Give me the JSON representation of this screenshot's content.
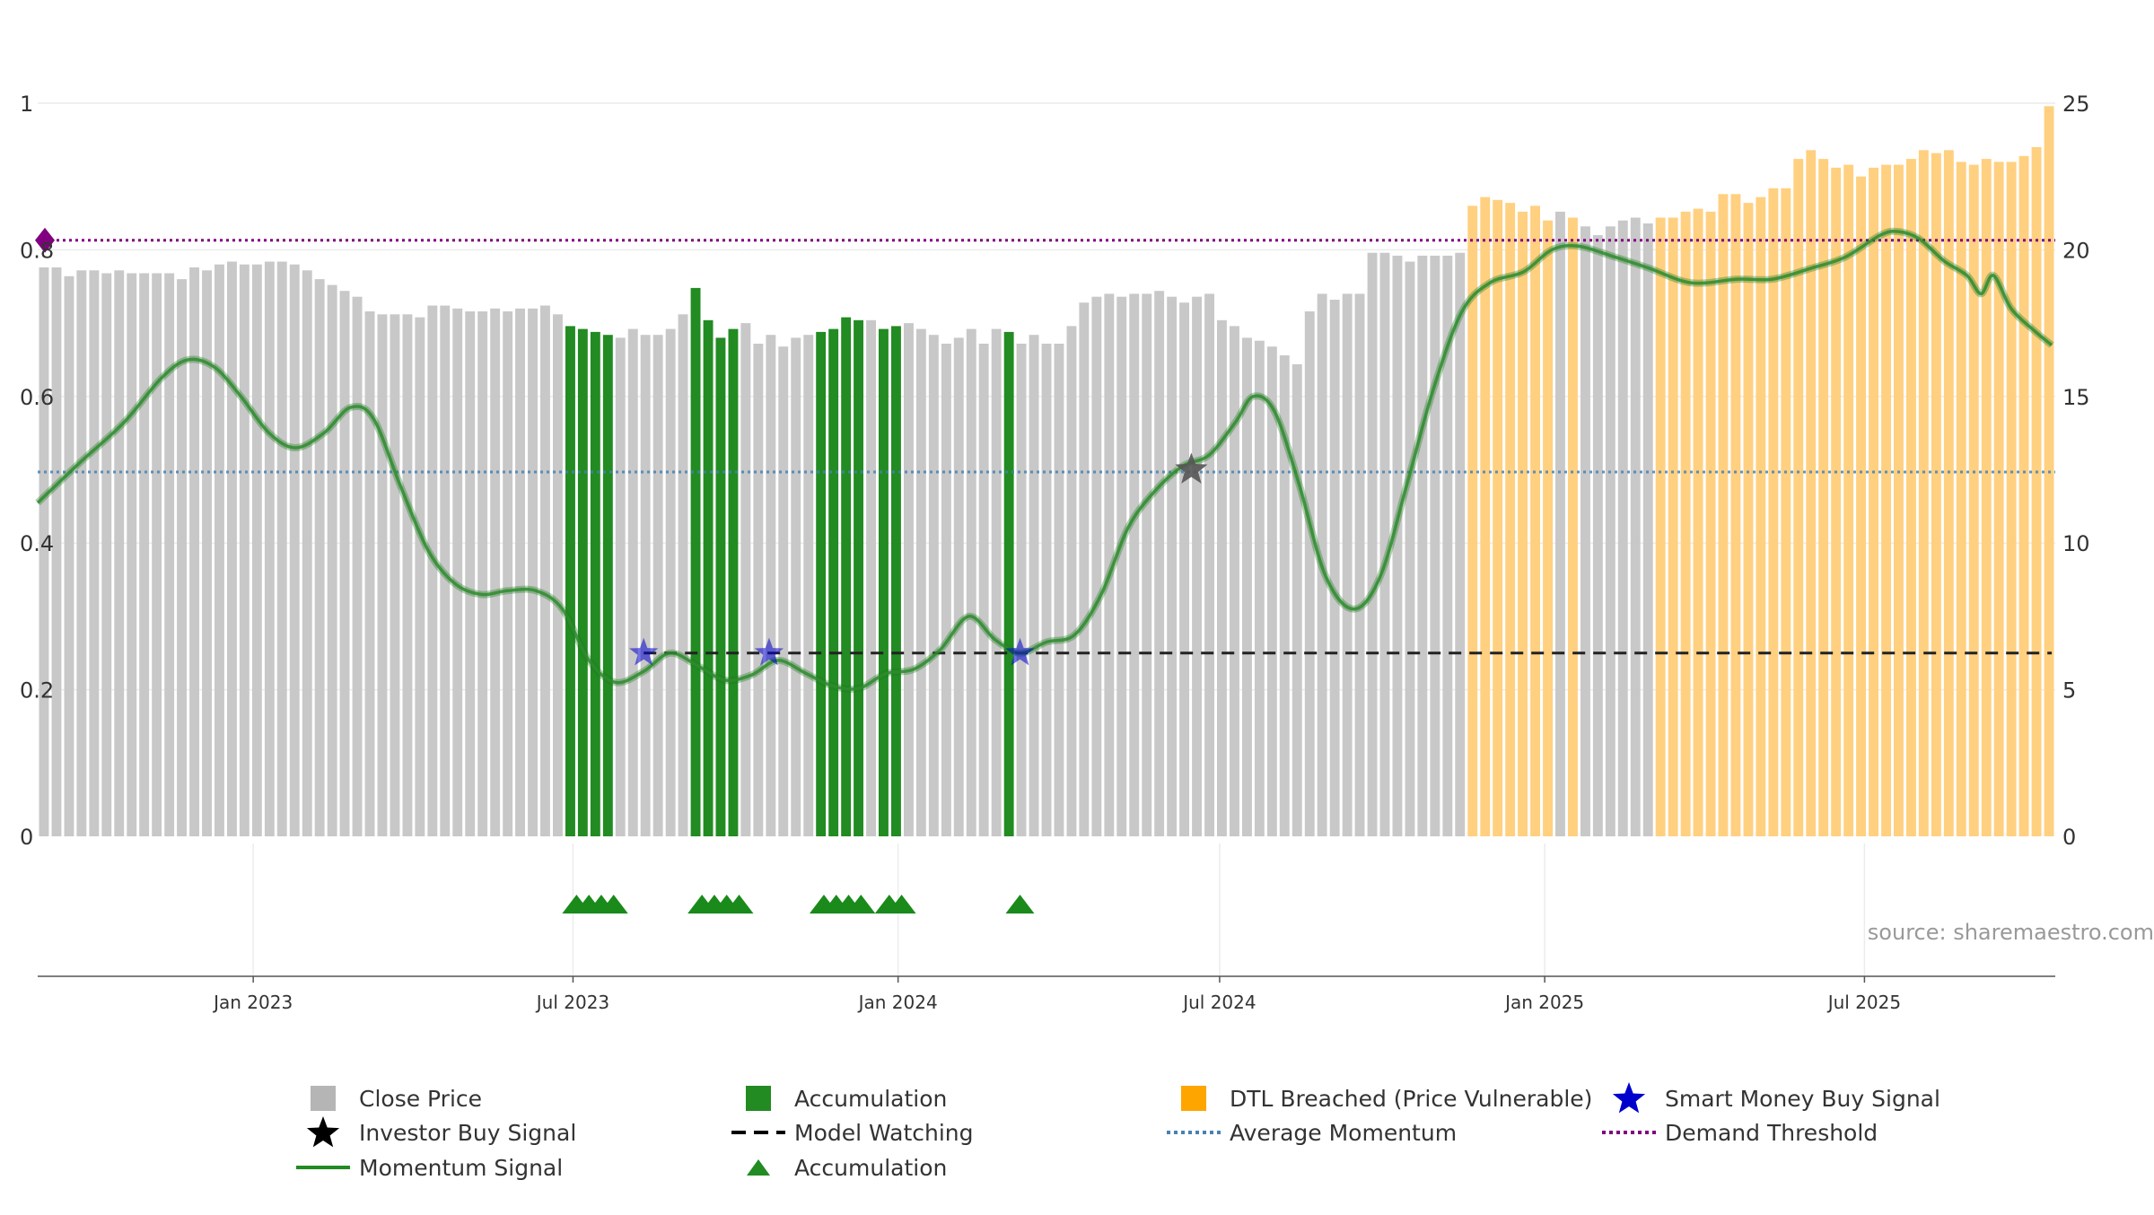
{
  "chart_data": {
    "type": "bar",
    "source_text": "source: sharemaestro.com",
    "left_axis": {
      "ticks": [
        0,
        0.2,
        0.4,
        0.6,
        0.8,
        1
      ],
      "tick_labels": [
        "0",
        "0.2",
        "0.4",
        "0.6",
        "0.8",
        "1"
      ],
      "range": [
        0,
        1
      ]
    },
    "right_axis": {
      "ticks": [
        0,
        5,
        10,
        15,
        20,
        25
      ],
      "tick_labels": [
        "0",
        "5",
        "10",
        "15",
        "20",
        "25"
      ],
      "range": [
        0,
        25
      ]
    },
    "x_axis": {
      "start": "2022-09-01",
      "end": "2025-10-17",
      "ticks": [
        {
          "date": "2023-01-01",
          "label": "Jan 2023"
        },
        {
          "date": "2023-07-01",
          "label": "Jul 2023"
        },
        {
          "date": "2024-01-01",
          "label": "Jan 2024"
        },
        {
          "date": "2024-07-01",
          "label": "Jul 2024"
        },
        {
          "date": "2025-01-01",
          "label": "Jan 2025"
        },
        {
          "date": "2025-07-01",
          "label": "Jul 2025"
        }
      ]
    },
    "colors": {
      "close": "#c8c8c8",
      "accumulation": "#228b22",
      "dtl": "#ffd080",
      "momentum": "#2e8b2e",
      "demand": "#800080",
      "average": "#4682b4",
      "watching": "#222222",
      "smart_money": "#0000cd",
      "investor": "#555555"
    },
    "bars": {
      "start": "2022-09-01",
      "interval_days": 6.4,
      "close_values": [
        19.4,
        19.4,
        19.1,
        19.3,
        19.3,
        19.2,
        19.3,
        19.2,
        19.2,
        19.2,
        19.2,
        19.0,
        19.4,
        19.3,
        19.5,
        19.6,
        19.5,
        19.5,
        19.6,
        19.6,
        19.5,
        19.3,
        19.0,
        18.8,
        18.6,
        18.4,
        17.9,
        17.8,
        17.8,
        17.8,
        17.7,
        18.1,
        18.1,
        18.0,
        17.9,
        17.9,
        18.0,
        17.9,
        18.0,
        18.0,
        18.1,
        17.8,
        17.4,
        17.3,
        17.2,
        17.1,
        17.0,
        17.3,
        17.1,
        17.1,
        17.3,
        17.8,
        18.7,
        17.6,
        17.0,
        17.3,
        17.5,
        16.8,
        17.1,
        16.7,
        17.0,
        17.1,
        17.2,
        17.3,
        17.7,
        17.6,
        17.6,
        17.3,
        17.4,
        17.5,
        17.3,
        17.1,
        16.8,
        17.0,
        17.3,
        16.8,
        17.3,
        17.2,
        16.8,
        17.1,
        16.8,
        16.8,
        17.4,
        18.2,
        18.4,
        18.5,
        18.4,
        18.5,
        18.5,
        18.6,
        18.4,
        18.2,
        18.4,
        18.5,
        17.6,
        17.4,
        17.0,
        16.9,
        16.7,
        16.4,
        16.1,
        17.9,
        18.5,
        18.3,
        18.5,
        18.5,
        19.9,
        19.9,
        19.8,
        19.6,
        19.8,
        19.8,
        19.8,
        19.9,
        21.5,
        21.8,
        21.7,
        21.6,
        21.3,
        21.5,
        21.0,
        21.3,
        21.1,
        20.8,
        20.5,
        20.8,
        21.0,
        21.1,
        20.9,
        21.1,
        21.1,
        21.3,
        21.4,
        21.3,
        21.9,
        21.9,
        21.6,
        21.8,
        22.1,
        22.1,
        23.1,
        23.4,
        23.1,
        22.8,
        22.9,
        22.5,
        22.8,
        22.9,
        22.9,
        23.1,
        23.4,
        23.3,
        23.4,
        23.0,
        22.9,
        23.1,
        23.0,
        23.0,
        23.2,
        23.5,
        24.9
      ],
      "categories": [
        "c",
        "c",
        "c",
        "c",
        "c",
        "c",
        "c",
        "c",
        "c",
        "c",
        "c",
        "c",
        "c",
        "c",
        "c",
        "c",
        "c",
        "c",
        "c",
        "c",
        "c",
        "c",
        "c",
        "c",
        "c",
        "c",
        "c",
        "c",
        "c",
        "c",
        "c",
        "c",
        "c",
        "c",
        "c",
        "c",
        "c",
        "c",
        "c",
        "c",
        "c",
        "c",
        "a",
        "a",
        "a",
        "a",
        "c",
        "c",
        "c",
        "c",
        "c",
        "c",
        "a",
        "a",
        "a",
        "a",
        "c",
        "c",
        "c",
        "c",
        "c",
        "c",
        "a",
        "a",
        "a",
        "a",
        "c",
        "a",
        "a",
        "c",
        "c",
        "c",
        "c",
        "c",
        "c",
        "c",
        "c",
        "a",
        "c",
        "c",
        "c",
        "c",
        "c",
        "c",
        "c",
        "c",
        "c",
        "c",
        "c",
        "c",
        "c",
        "c",
        "c",
        "c",
        "c",
        "c",
        "c",
        "c",
        "c",
        "c",
        "c",
        "c",
        "c",
        "c",
        "c",
        "c",
        "c",
        "c",
        "c",
        "c",
        "c",
        "c",
        "c",
        "c",
        "d",
        "d",
        "d",
        "d",
        "d",
        "d",
        "d",
        "c",
        "d",
        "c",
        "c",
        "c",
        "c",
        "c",
        "c",
        "d",
        "d",
        "d",
        "d",
        "d",
        "d",
        "d",
        "d",
        "d",
        "d",
        "d",
        "d",
        "d",
        "d",
        "d",
        "d",
        "d",
        "d",
        "d",
        "d",
        "d",
        "d",
        "d",
        "d",
        "d",
        "d",
        "d",
        "d",
        "d",
        "d",
        "d",
        "d",
        "d",
        "d",
        "d",
        "d"
      ]
    },
    "momentum_signal": [
      [
        "2022-09-01",
        0.455
      ],
      [
        "2022-09-25",
        0.51
      ],
      [
        "2022-10-20",
        0.565
      ],
      [
        "2022-11-10",
        0.625
      ],
      [
        "2022-11-25",
        0.65
      ],
      [
        "2022-12-10",
        0.64
      ],
      [
        "2022-12-25",
        0.6
      ],
      [
        "2023-01-10",
        0.55
      ],
      [
        "2023-01-25",
        0.53
      ],
      [
        "2023-02-10",
        0.55
      ],
      [
        "2023-02-25",
        0.585
      ],
      [
        "2023-03-10",
        0.57
      ],
      [
        "2023-03-25",
        0.48
      ],
      [
        "2023-04-10",
        0.39
      ],
      [
        "2023-04-25",
        0.345
      ],
      [
        "2023-05-10",
        0.33
      ],
      [
        "2023-05-25",
        0.335
      ],
      [
        "2023-06-10",
        0.335
      ],
      [
        "2023-06-25",
        0.31
      ],
      [
        "2023-07-10",
        0.24
      ],
      [
        "2023-07-25",
        0.21
      ],
      [
        "2023-08-10",
        0.225
      ],
      [
        "2023-08-25",
        0.25
      ],
      [
        "2023-09-10",
        0.232
      ],
      [
        "2023-09-25",
        0.213
      ],
      [
        "2023-10-10",
        0.22
      ],
      [
        "2023-10-25",
        0.24
      ],
      [
        "2023-11-10",
        0.222
      ],
      [
        "2023-11-25",
        0.205
      ],
      [
        "2023-12-10",
        0.202
      ],
      [
        "2023-12-25",
        0.222
      ],
      [
        "2024-01-10",
        0.228
      ],
      [
        "2024-01-25",
        0.255
      ],
      [
        "2024-02-10",
        0.3
      ],
      [
        "2024-02-25",
        0.268
      ],
      [
        "2024-03-10",
        0.25
      ],
      [
        "2024-03-25",
        0.265
      ],
      [
        "2024-04-10",
        0.275
      ],
      [
        "2024-04-25",
        0.33
      ],
      [
        "2024-05-10",
        0.42
      ],
      [
        "2024-05-25",
        0.47
      ],
      [
        "2024-06-10",
        0.505
      ],
      [
        "2024-06-25",
        0.52
      ],
      [
        "2024-07-10",
        0.565
      ],
      [
        "2024-07-20",
        0.6
      ],
      [
        "2024-08-01",
        0.58
      ],
      [
        "2024-08-15",
        0.48
      ],
      [
        "2024-08-30",
        0.355
      ],
      [
        "2024-09-15",
        0.31
      ],
      [
        "2024-09-30",
        0.355
      ],
      [
        "2024-10-15",
        0.48
      ],
      [
        "2024-10-30",
        0.61
      ],
      [
        "2024-11-15",
        0.715
      ],
      [
        "2024-12-01",
        0.755
      ],
      [
        "2024-12-20",
        0.77
      ],
      [
        "2025-01-05",
        0.8
      ],
      [
        "2025-01-20",
        0.805
      ],
      [
        "2025-02-10",
        0.79
      ],
      [
        "2025-03-01",
        0.775
      ],
      [
        "2025-03-25",
        0.755
      ],
      [
        "2025-04-20",
        0.76
      ],
      [
        "2025-05-10",
        0.76
      ],
      [
        "2025-06-01",
        0.775
      ],
      [
        "2025-06-20",
        0.79
      ],
      [
        "2025-07-10",
        0.82
      ],
      [
        "2025-07-20",
        0.825
      ],
      [
        "2025-08-01",
        0.815
      ],
      [
        "2025-08-15",
        0.785
      ],
      [
        "2025-08-28",
        0.765
      ],
      [
        "2025-09-05",
        0.74
      ],
      [
        "2025-09-12",
        0.765
      ],
      [
        "2025-09-22",
        0.72
      ],
      [
        "2025-10-05",
        0.69
      ],
      [
        "2025-10-15",
        0.67
      ]
    ],
    "demand_threshold": 0.813,
    "average_momentum": 0.497,
    "model_watching": {
      "value": 0.25,
      "start": "2023-08-10",
      "end": "2025-10-15"
    },
    "smart_money_buy_signals": [
      [
        "2023-08-10",
        0.25
      ],
      [
        "2023-10-20",
        0.25
      ],
      [
        "2024-03-10",
        0.25
      ]
    ],
    "investor_buy_signals": [
      [
        "2024-06-15",
        0.5
      ]
    ],
    "demand_marker": [
      "2022-09-01",
      0.813
    ],
    "accumulation_triangles": [
      "2023-07-03",
      "2023-07-10",
      "2023-07-17",
      "2023-07-24",
      "2023-09-12",
      "2023-09-19",
      "2023-09-26",
      "2023-10-03",
      "2023-11-20",
      "2023-11-27",
      "2023-12-04",
      "2023-12-11",
      "2023-12-27",
      "2024-01-03",
      "2024-03-10"
    ],
    "legend": [
      {
        "label": "Close Price",
        "symbol": "square",
        "color": "#b5b5b5"
      },
      {
        "label": "Accumulation",
        "symbol": "square",
        "color": "#228b22"
      },
      {
        "label": "DTL Breached (Price Vulnerable)",
        "symbol": "square",
        "color": "#ffa500"
      },
      {
        "label": "Smart Money Buy Signal",
        "symbol": "star",
        "color": "#0000cd"
      },
      {
        "label": "Investor Buy Signal",
        "symbol": "star",
        "color": "#000000"
      },
      {
        "label": "Model Watching",
        "symbol": "dash",
        "color": "#000000"
      },
      {
        "label": "Average Momentum",
        "symbol": "dot",
        "color": "#4682b4"
      },
      {
        "label": "Demand Threshold",
        "symbol": "dot",
        "color": "#800080"
      },
      {
        "label": "Momentum Signal",
        "symbol": "line",
        "color": "#228b22"
      },
      {
        "label": "Accumulation",
        "symbol": "triangle",
        "color": "#228b22"
      }
    ]
  }
}
